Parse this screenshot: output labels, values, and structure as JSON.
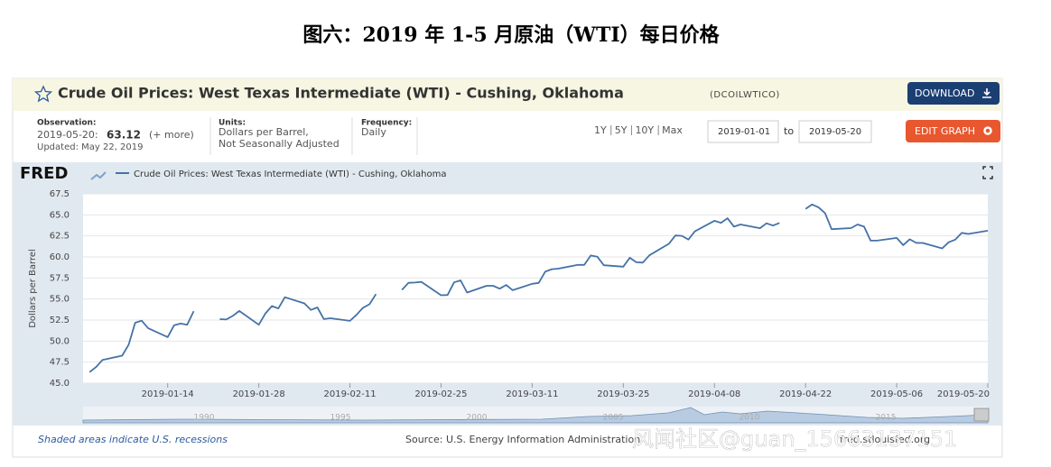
{
  "figure_title": "图六：2019 年 1-5 月原油（WTI）每日价格",
  "header": {
    "title": "Crude Oil Prices: West Texas Intermediate (WTI) - Cushing, Oklahoma",
    "series_id": "(DCOILWTICO)",
    "download": "DOWNLOAD",
    "observation_label": "Observation:",
    "observation_date": "2019-05-20:",
    "observation_value": "63.12",
    "observation_more": "(+ more)",
    "updated": "Updated: May 22, 2019",
    "units_label": "Units:",
    "units_line1": "Dollars per Barrel,",
    "units_line2": "Not Seasonally Adjusted",
    "frequency_label": "Frequency:",
    "frequency": "Daily",
    "ranges": [
      "1Y",
      "5Y",
      "10Y",
      "Max"
    ],
    "date_from": "2019-01-01",
    "date_to_word": "to",
    "date_to": "2019-05-20",
    "edit": "EDIT GRAPH"
  },
  "chart_data": {
    "type": "line",
    "logo": "FRED",
    "ylabel": "Dollars per Barrel",
    "xlim": [
      "2019-01-01",
      "2019-05-20"
    ],
    "xticks": [
      "2019-01-14",
      "2019-01-28",
      "2019-02-11",
      "2019-02-25",
      "2019-03-11",
      "2019-03-25",
      "2019-04-08",
      "2019-04-22",
      "2019-05-06",
      "2019-05-20"
    ],
    "ylim": [
      45,
      67.5
    ],
    "yticks": [
      {
        "value": 45,
        "label": "45.0"
      },
      47.5,
      {
        "value": 50,
        "label": "50.0"
      },
      52.5,
      {
        "value": 55,
        "label": "55.0"
      },
      57.5,
      {
        "value": 60,
        "label": "60.0"
      },
      62.5,
      {
        "value": 65,
        "label": "65.0"
      },
      67.5
    ],
    "grid": true,
    "x": [
      "2019-01-02",
      "2019-01-03",
      "2019-01-04",
      "2019-01-07",
      "2019-01-08",
      "2019-01-09",
      "2019-01-10",
      "2019-01-11",
      "2019-01-14",
      "2019-01-15",
      "2019-01-16",
      "2019-01-17",
      "2019-01-18",
      "2019-01-21",
      "2019-01-22",
      "2019-01-23",
      "2019-01-24",
      "2019-01-25",
      "2019-01-28",
      "2019-01-29",
      "2019-01-30",
      "2019-01-31",
      "2019-02-01",
      "2019-02-04",
      "2019-02-05",
      "2019-02-06",
      "2019-02-07",
      "2019-02-08",
      "2019-02-11",
      "2019-02-12",
      "2019-02-13",
      "2019-02-14",
      "2019-02-15",
      "2019-02-18",
      "2019-02-19",
      "2019-02-20",
      "2019-02-21",
      "2019-02-22",
      "2019-02-25",
      "2019-02-26",
      "2019-02-27",
      "2019-02-28",
      "2019-03-01",
      "2019-03-04",
      "2019-03-05",
      "2019-03-06",
      "2019-03-07",
      "2019-03-08",
      "2019-03-11",
      "2019-03-12",
      "2019-03-13",
      "2019-03-14",
      "2019-03-15",
      "2019-03-18",
      "2019-03-19",
      "2019-03-20",
      "2019-03-21",
      "2019-03-22",
      "2019-03-25",
      "2019-03-26",
      "2019-03-27",
      "2019-03-28",
      "2019-03-29",
      "2019-04-01",
      "2019-04-02",
      "2019-04-03",
      "2019-04-04",
      "2019-04-05",
      "2019-04-08",
      "2019-04-09",
      "2019-04-10",
      "2019-04-11",
      "2019-04-12",
      "2019-04-15",
      "2019-04-16",
      "2019-04-17",
      "2019-04-18",
      "2019-04-19",
      "2019-04-22",
      "2019-04-23",
      "2019-04-24",
      "2019-04-25",
      "2019-04-26",
      "2019-04-29",
      "2019-04-30",
      "2019-05-01",
      "2019-05-02",
      "2019-05-03",
      "2019-05-06",
      "2019-05-07",
      "2019-05-08",
      "2019-05-09",
      "2019-05-10",
      "2019-05-13",
      "2019-05-14",
      "2019-05-15",
      "2019-05-16",
      "2019-05-17",
      "2019-05-20"
    ],
    "series": [
      {
        "name": "Crude Oil Prices: West Texas Intermediate (WTI) - Cushing, Oklahoma",
        "color": "#4572a7",
        "values": [
          46.31,
          46.92,
          47.76,
          48.27,
          49.58,
          52.18,
          52.42,
          51.53,
          50.48,
          51.89,
          52.08,
          51.93,
          53.55,
          null,
          52.61,
          52.56,
          52.99,
          53.58,
          51.94,
          53.26,
          54.16,
          53.88,
          55.21,
          54.48,
          53.7,
          54.0,
          52.62,
          52.71,
          52.4,
          53.12,
          53.96,
          54.38,
          55.59,
          null,
          56.09,
          56.92,
          56.96,
          57.03,
          55.45,
          55.48,
          56.98,
          57.21,
          55.77,
          56.57,
          56.57,
          56.23,
          56.67,
          56.05,
          56.81,
          56.91,
          58.24,
          58.54,
          58.61,
          59.06,
          59.06,
          60.17,
          60.03,
          59.01,
          58.84,
          59.9,
          59.37,
          59.33,
          60.19,
          61.56,
          62.55,
          62.51,
          62.07,
          63.04,
          64.3,
          64.05,
          64.6,
          63.6,
          63.86,
          63.42,
          64.0,
          63.73,
          64.04,
          null,
          65.7,
          66.24,
          65.88,
          65.21,
          63.3,
          63.43,
          63.86,
          63.6,
          61.94,
          61.94,
          62.26,
          61.4,
          62.1,
          61.67,
          61.66,
          61.02,
          61.75,
          62.06,
          62.86,
          62.73,
          63.12
        ]
      }
    ],
    "navigator_labels": [
      "1990",
      "1995",
      "2000",
      "2005",
      "2010",
      "2015"
    ]
  },
  "footer": {
    "recessions": "Shaded areas indicate U.S. recessions",
    "source": "Source: U.S. Energy Information Administration",
    "site": "fred.stlouisfed.org",
    "watermark": "风闻社区@guan_15663137151"
  }
}
